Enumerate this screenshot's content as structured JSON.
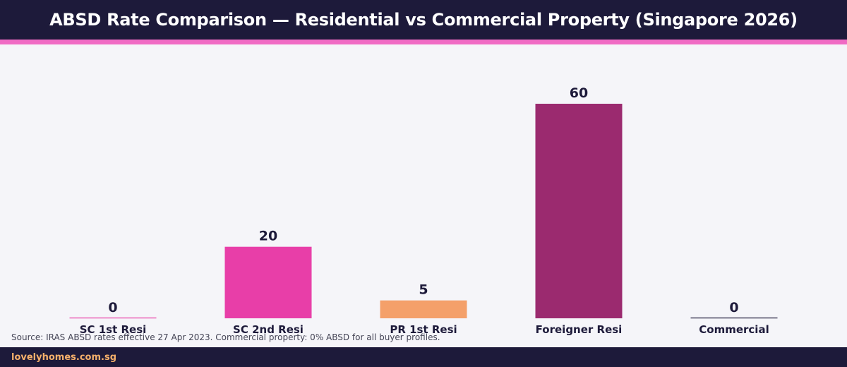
{
  "chart_data": {
    "type": "bar",
    "title": "ABSD Rate Comparison — Residential vs Commercial Property (Singapore 2026)",
    "categories": [
      "SC 1st Resi",
      "SC 2nd Resi",
      "PR 1st Resi",
      "Foreigner Resi",
      "Commercial"
    ],
    "values": [
      0,
      20,
      5,
      60,
      0
    ],
    "colors": [
      "#e83ea8",
      "#e83ea8",
      "#f4a06a",
      "#9b2a6f",
      "#1d1a3a"
    ],
    "ylim": [
      0,
      60
    ],
    "grid": false,
    "legend": "none"
  },
  "source_note": "Source: IRAS ABSD rates effective 27 Apr 2023. Commercial property: 0% ABSD for all buyer profiles.",
  "footer": {
    "brand": "lovelyhomes.com.sg"
  },
  "colors": {
    "header_bg": "#1d1a3a",
    "accent": "#f06bc4",
    "background": "#f5f5f9",
    "brand_text": "#f5b06b"
  }
}
